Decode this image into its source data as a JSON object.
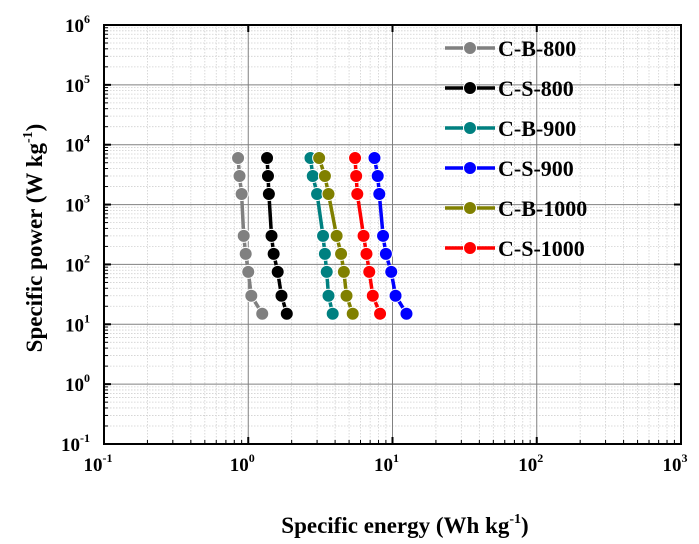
{
  "chart_data": {
    "type": "scatter",
    "title": "",
    "xlabel": "Specific energy (Wh kg-1)",
    "ylabel": "Specific power (W kg-1)",
    "xlabel_parts": {
      "main": "Specific energy (Wh kg",
      "sup": "-1",
      "end": ")"
    },
    "ylabel_parts": {
      "main": "Specific power (W kg",
      "sup": "-1",
      "end": ")"
    },
    "xscale": "log",
    "yscale": "log",
    "xlim": [
      0.1,
      1000
    ],
    "ylim": [
      0.1,
      1000000
    ],
    "x_ticks": [
      {
        "base": "10",
        "exp": "-1"
      },
      {
        "base": "10",
        "exp": "0"
      },
      {
        "base": "10",
        "exp": "1"
      },
      {
        "base": "10",
        "exp": "2"
      },
      {
        "base": "10",
        "exp": "3"
      }
    ],
    "y_ticks": [
      {
        "base": "10",
        "exp": "-1"
      },
      {
        "base": "10",
        "exp": "0"
      },
      {
        "base": "10",
        "exp": "1"
      },
      {
        "base": "10",
        "exp": "2"
      },
      {
        "base": "10",
        "exp": "3"
      },
      {
        "base": "10",
        "exp": "4"
      },
      {
        "base": "10",
        "exp": "5"
      },
      {
        "base": "10",
        "exp": "6"
      }
    ],
    "grid": true,
    "legend_position": "top-right",
    "series": [
      {
        "name": "C-B-800",
        "color": "#808080",
        "x": [
          0.85,
          0.87,
          0.9,
          0.93,
          0.96,
          1.0,
          1.05,
          1.25
        ],
        "y": [
          6000,
          3000,
          1500,
          300,
          150,
          75,
          30,
          15
        ]
      },
      {
        "name": "C-S-800",
        "color": "#000000",
        "x": [
          1.35,
          1.37,
          1.39,
          1.45,
          1.5,
          1.6,
          1.7,
          1.85
        ],
        "y": [
          6000,
          3000,
          1500,
          300,
          150,
          75,
          30,
          15
        ]
      },
      {
        "name": "C-B-900",
        "color": "#008080",
        "x": [
          2.7,
          2.8,
          3.0,
          3.3,
          3.4,
          3.5,
          3.6,
          3.85
        ],
        "y": [
          6000,
          3000,
          1500,
          300,
          150,
          75,
          30,
          15
        ]
      },
      {
        "name": "C-S-900",
        "color": "#0000ff",
        "x": [
          7.5,
          7.9,
          8.1,
          8.6,
          9.0,
          9.8,
          10.5,
          12.5
        ],
        "y": [
          6000,
          3000,
          1500,
          300,
          150,
          75,
          30,
          15
        ]
      },
      {
        "name": "C-B-1000",
        "color": "#808000",
        "x": [
          3.1,
          3.4,
          3.6,
          4.1,
          4.4,
          4.6,
          4.8,
          5.3
        ],
        "y": [
          6000,
          3000,
          1500,
          300,
          150,
          75,
          30,
          15
        ]
      },
      {
        "name": "C-S-1000",
        "color": "#ff0000",
        "x": [
          5.5,
          5.6,
          5.7,
          6.3,
          6.6,
          6.9,
          7.3,
          8.2
        ],
        "y": [
          6000,
          3000,
          1500,
          300,
          150,
          75,
          30,
          15
        ]
      }
    ]
  }
}
